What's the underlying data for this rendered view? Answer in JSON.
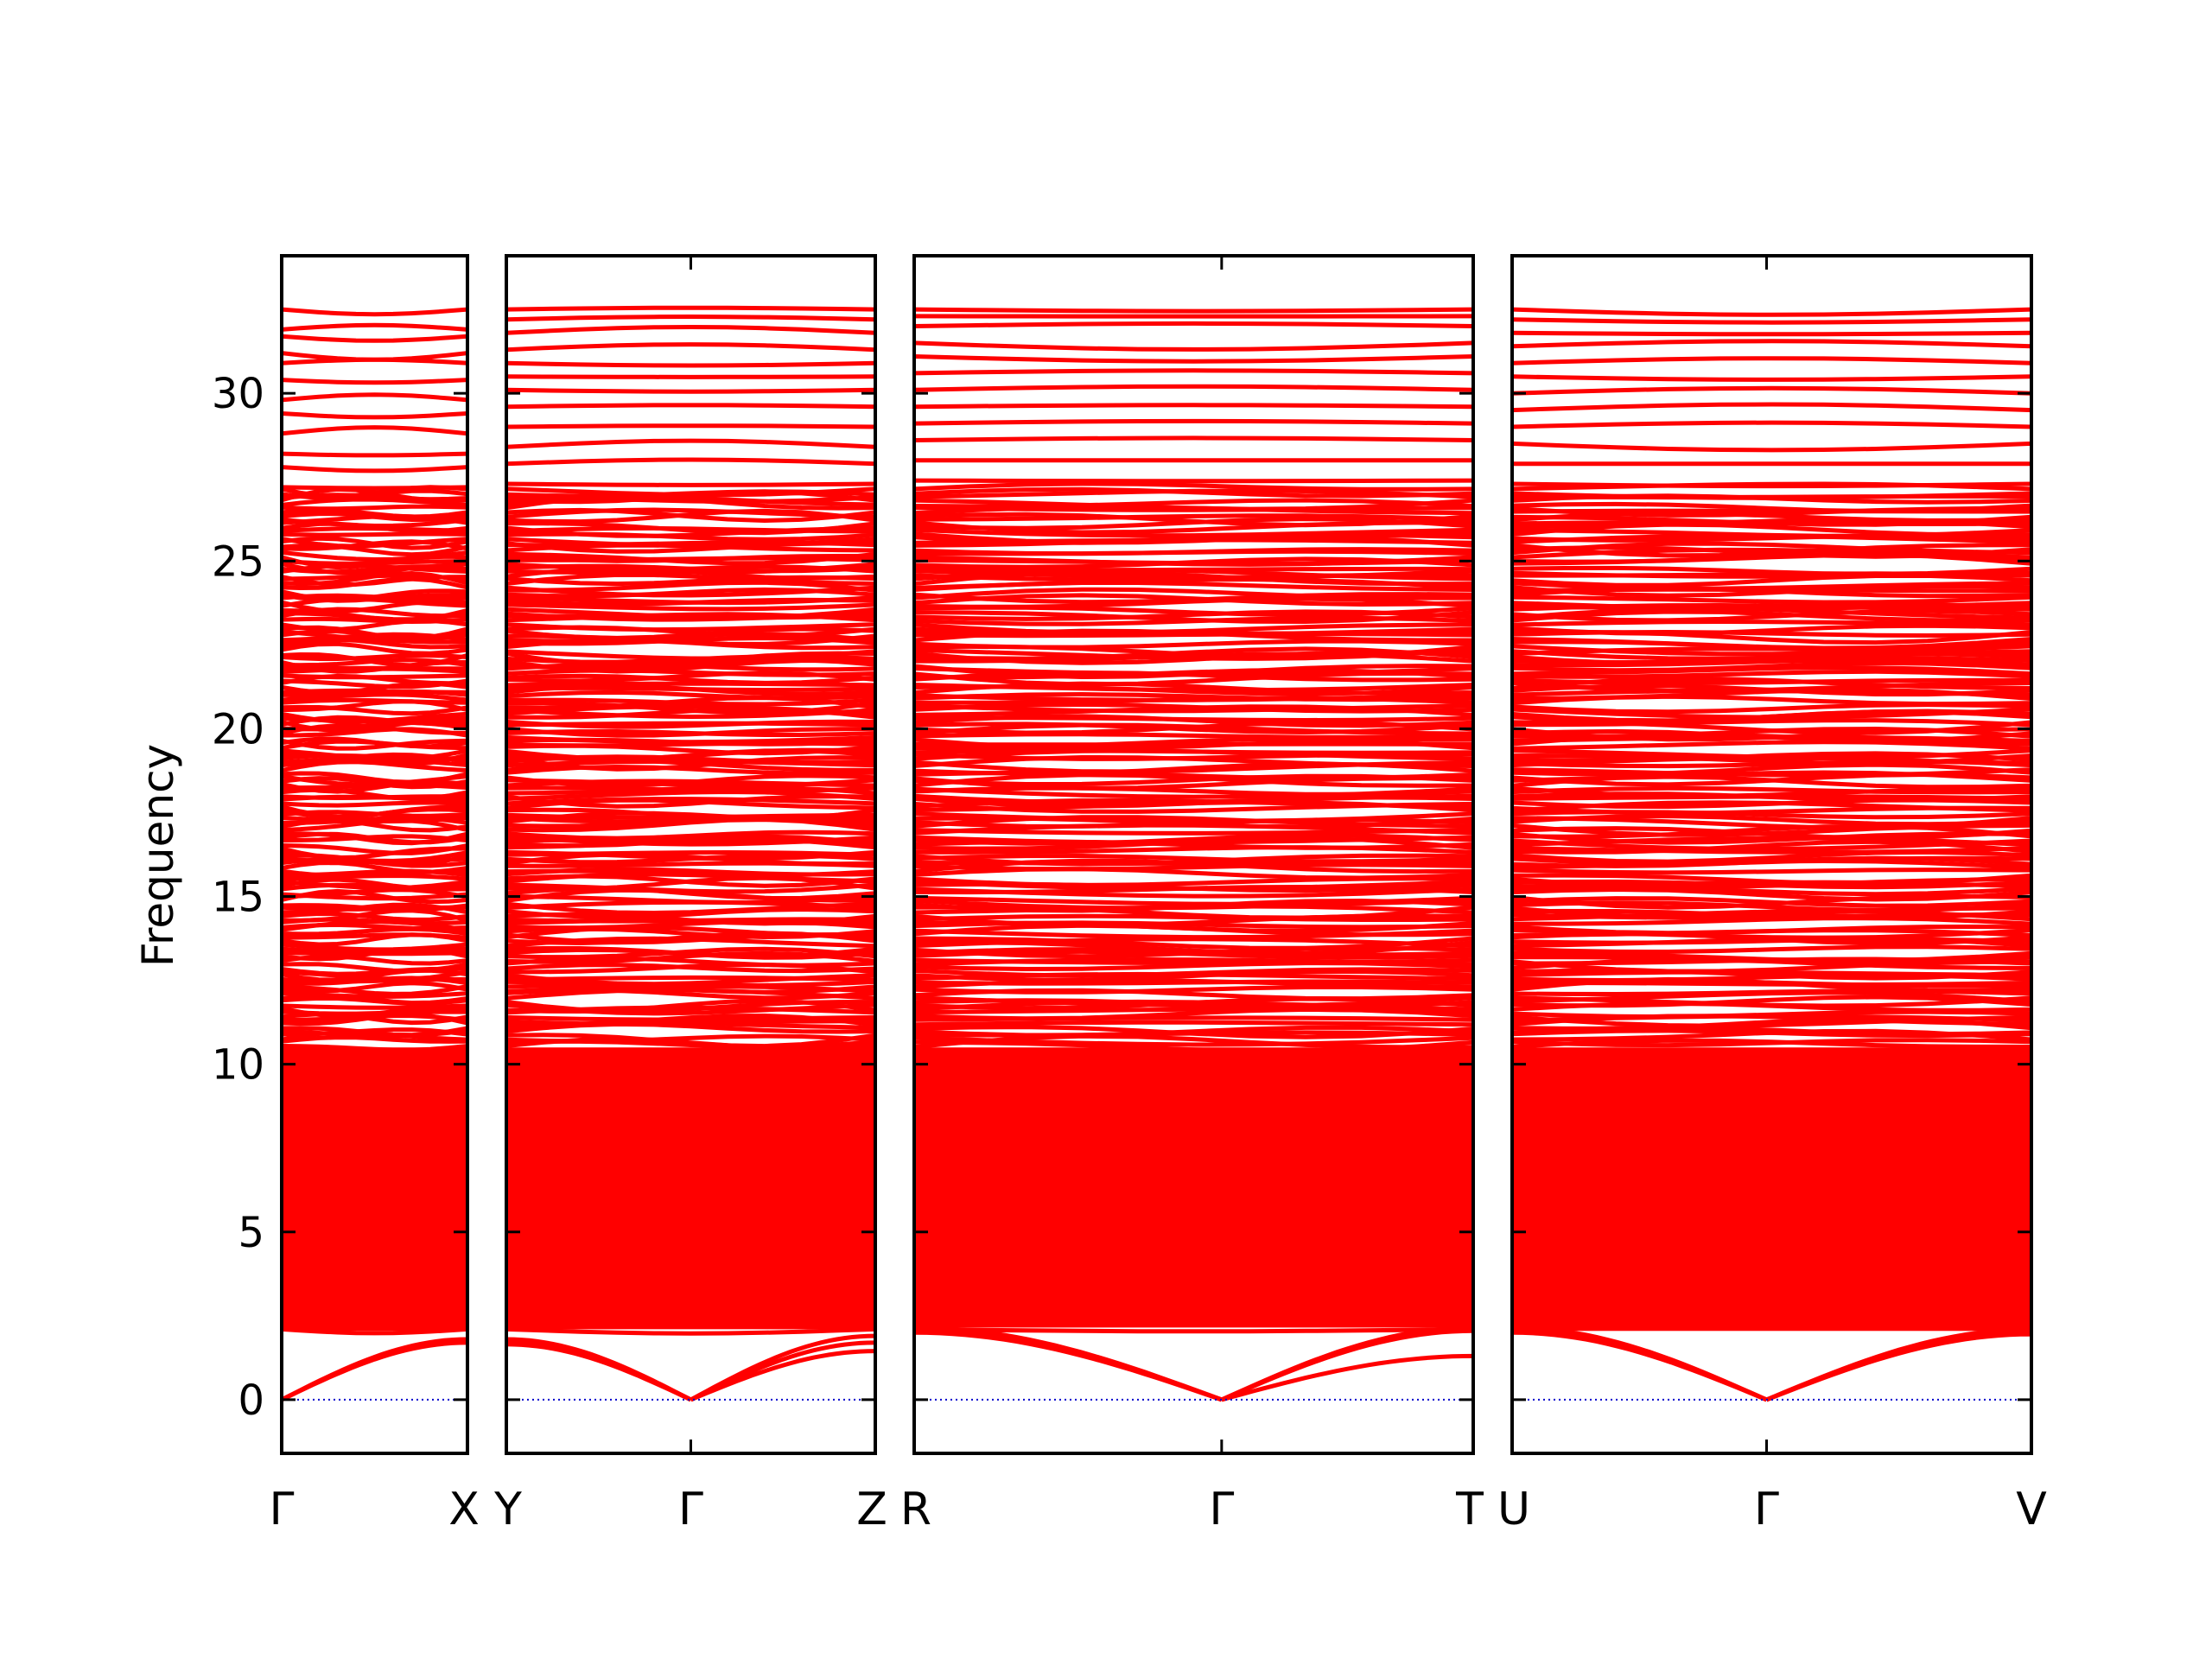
{
  "chart_data": {
    "type": "line",
    "ylabel": "Frequency",
    "ylim": [
      -1.6,
      34.1
    ],
    "yticks": [
      "0",
      "5",
      "10",
      "15",
      "20",
      "25",
      "30"
    ],
    "yticks_values": [
      0,
      5,
      10,
      15,
      20,
      25,
      30
    ],
    "grid": false,
    "line_color": "#ff0000",
    "zero_line_color": "#0000cc",
    "panels": [
      {
        "labels": [
          "Γ",
          "X"
        ],
        "kpoints": [
          0,
          1
        ],
        "acoustic_edges": [
          {
            "from": 0,
            "to": 1,
            "at_from": 0,
            "at_to": [
              1.7,
              1.75,
              1.8
            ]
          }
        ],
        "band_bottom": 2.05,
        "top_bands": [
          32.5,
          31.9,
          31.7,
          31.2,
          30.9,
          30.4,
          29.8,
          29.4,
          28.8,
          28.2,
          27.8,
          27.2
        ]
      },
      {
        "labels": [
          "Y",
          "Γ",
          "Z"
        ],
        "kpoints": [
          0,
          0.5,
          1
        ],
        "acoustic_edges": [
          {
            "from": 0.5,
            "to": 0,
            "at_from": 0,
            "at_to": [
              1.65,
              1.75,
              1.8
            ]
          },
          {
            "from": 0.5,
            "to": 1,
            "at_from": 0,
            "at_to": [
              1.45,
              1.7,
              1.9
            ]
          }
        ],
        "band_bottom": 2.1,
        "top_bands": [
          32.5,
          32.2,
          31.8,
          31.3,
          30.9,
          30.5,
          30.1,
          29.6,
          29.0,
          28.4,
          27.9,
          27.3
        ]
      },
      {
        "labels": [
          "R",
          "Γ",
          "T"
        ],
        "kpoints": [
          0,
          0.55,
          1
        ],
        "acoustic_edges": [
          {
            "from": 0.55,
            "to": 0,
            "at_from": 0,
            "at_to": [
              2.0,
              2.1,
              2.15
            ]
          },
          {
            "from": 0.55,
            "to": 1,
            "at_from": 0,
            "at_to": [
              1.3,
              2.05,
              2.15
            ]
          }
        ],
        "band_bottom": 2.15,
        "top_bands": [
          32.5,
          32.3,
          32.0,
          31.5,
          31.1,
          30.6,
          30.1,
          29.6,
          29.1,
          28.6,
          28.0,
          27.4
        ]
      },
      {
        "labels": [
          "U",
          "Γ",
          "V"
        ],
        "kpoints": [
          0,
          0.49,
          1
        ],
        "acoustic_edges": [
          {
            "from": 0.49,
            "to": 0,
            "at_from": 0,
            "at_to": [
              2.0,
              2.1,
              2.15
            ]
          },
          {
            "from": 0.49,
            "to": 1,
            "at_from": 0,
            "at_to": [
              1.95,
              2.05,
              2.1
            ]
          }
        ],
        "band_bottom": 2.05,
        "top_bands": [
          32.5,
          32.2,
          31.8,
          31.4,
          30.9,
          30.5,
          30.0,
          29.5,
          29.0,
          28.5,
          27.9,
          27.3
        ]
      }
    ]
  }
}
